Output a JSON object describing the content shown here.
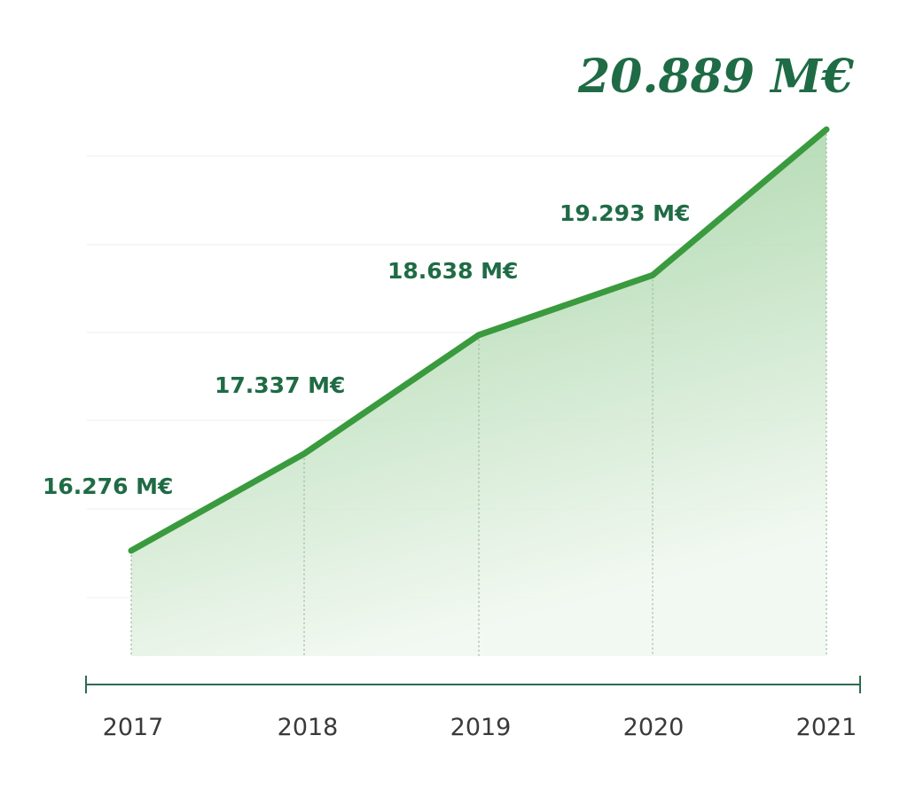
{
  "chart_data": {
    "type": "area",
    "x": [
      "2017",
      "2018",
      "2019",
      "2020",
      "2021"
    ],
    "values": [
      16276,
      17337,
      18638,
      19293,
      20889
    ],
    "data_labels": [
      "16.276 M€",
      "17.337 M€",
      "18.638 M€",
      "19.293 M€",
      "20.889 M€"
    ],
    "unit": "M€",
    "title": "",
    "xlabel": "",
    "ylabel": "",
    "ylim": [
      15100,
      21500
    ],
    "grid": true,
    "legend": "none"
  },
  "colors": {
    "line": "#3a9a3e",
    "fill_top": "#8fc98f",
    "fill_bottom": "#f1f8f0",
    "label": "#1f6b45",
    "axis": "#2e6b52",
    "grid": "#ececec",
    "tick_text": "#3a3a3a"
  }
}
